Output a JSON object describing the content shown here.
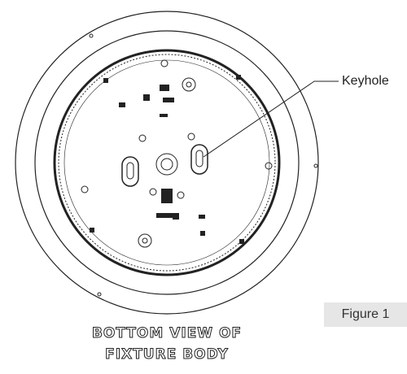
{
  "callout": {
    "label": "Keyhole"
  },
  "figure_label": "Figure 1",
  "caption": {
    "line1": "BOTTOM VIEW OF",
    "line2": "FIXTURE BODY"
  }
}
